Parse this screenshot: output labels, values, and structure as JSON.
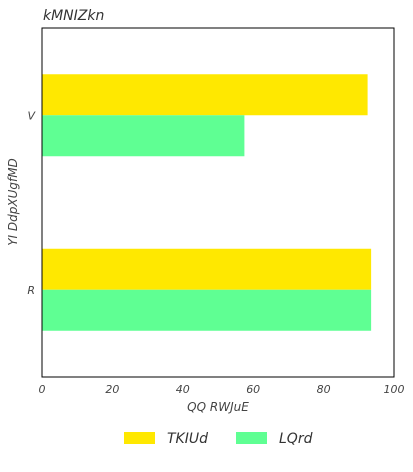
{
  "chart_data": {
    "type": "bar",
    "orientation": "horizontal",
    "title": "kMNIZkn",
    "xlabel": "QQ RWJuE",
    "ylabel": "YI DdpXUgfMD",
    "categories": [
      "R",
      "V"
    ],
    "series": [
      {
        "name": "TKIUd",
        "values": [
          93.5,
          92.5
        ],
        "color": "#ffe800"
      },
      {
        "name": "LQrd",
        "values": [
          93.5,
          57.5
        ],
        "color": "#5fff93"
      }
    ],
    "xlim": [
      0,
      100
    ],
    "xticks": [
      0,
      20,
      40,
      60,
      80,
      100
    ],
    "grid": false,
    "legend_position": "bottom-center"
  }
}
